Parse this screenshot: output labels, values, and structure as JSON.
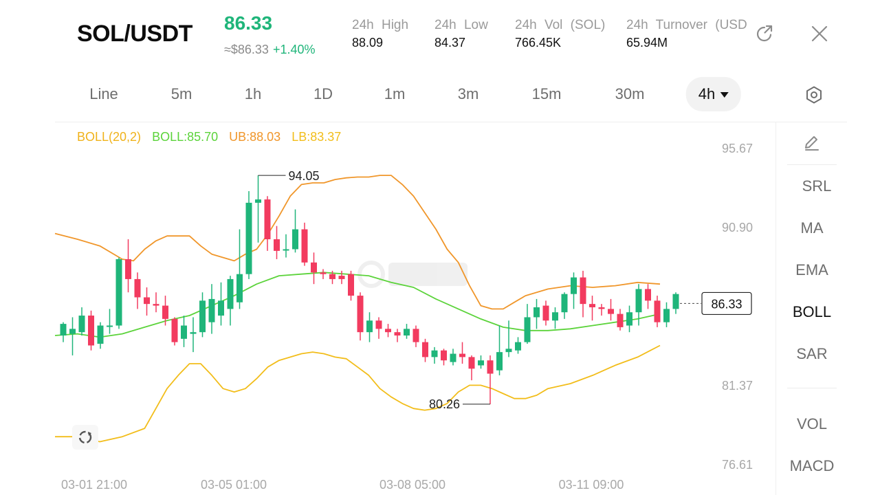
{
  "header": {
    "pair": "SOL/USDT",
    "price": "86.33",
    "price_fiat": "≈$86.33",
    "change": "+1.40%",
    "stats": [
      {
        "label": "24h High",
        "value": "88.09"
      },
      {
        "label": "24h Low",
        "value": "84.37"
      },
      {
        "label": "24h Vol (SOL)",
        "value": "766.45K"
      },
      {
        "label": "24h Turnover (USDT)",
        "value": "65.94M"
      }
    ],
    "share_icon": "share-icon",
    "close_icon": "close-icon"
  },
  "tabs": {
    "items": [
      "Line",
      "5m",
      "1h",
      "1D",
      "1m",
      "3m",
      "15m",
      "30m",
      "4h"
    ],
    "active": "4h",
    "settings_icon": "settings-icon"
  },
  "legend": {
    "boll_params": "BOLL(20,2)",
    "boll": "BOLL:85.70",
    "ub": "UB:88.03",
    "lb": "LB:83.37"
  },
  "colors": {
    "up": "#1fb57a",
    "down": "#f23b5f",
    "boll_mid": "#5bd33a",
    "boll_ub": "#f0962a",
    "boll_lb": "#f2bd1a",
    "params": "#f0b21a"
  },
  "side_panel": {
    "draw_icon": "pencil-icon",
    "items": [
      "SRL",
      "MA",
      "EMA",
      "BOLL",
      "SAR"
    ],
    "active": "BOLL",
    "sub_items": [
      "VOL",
      "MACD"
    ]
  },
  "chart_data": {
    "type": "candlestick",
    "y_ticks": [
      "95.67",
      "90.90",
      "81.37",
      "76.61"
    ],
    "ylim": [
      76.61,
      95.67
    ],
    "x_ticks": [
      "03-01 21:00",
      "03-05 01:00",
      "03-08 05:00",
      "03-11 09:00"
    ],
    "interval": "4h",
    "high_label": "94.05",
    "low_label": "80.26",
    "last_price": "86.33",
    "candles": [
      [
        84.4,
        85.1,
        84.0,
        85.2
      ],
      [
        84.5,
        84.8,
        83.2,
        85.5
      ],
      [
        84.6,
        85.6,
        84.4,
        86.1
      ],
      [
        85.6,
        83.8,
        83.5,
        85.9
      ],
      [
        83.9,
        85.0,
        83.6,
        85.2
      ],
      [
        85.0,
        85.0,
        84.5,
        86.0
      ],
      [
        85.0,
        89.0,
        84.8,
        89.1
      ],
      [
        89.0,
        87.8,
        87.0,
        90.2
      ],
      [
        87.8,
        86.7,
        86.0,
        88.2
      ],
      [
        86.7,
        86.3,
        85.6,
        87.3
      ],
      [
        86.3,
        86.2,
        85.8,
        87.0
      ],
      [
        86.2,
        85.4,
        85.0,
        86.8
      ],
      [
        85.4,
        84.0,
        83.8,
        85.5
      ],
      [
        84.2,
        85.0,
        83.7,
        85.6
      ],
      [
        84.5,
        84.6,
        83.4,
        85.5
      ],
      [
        84.6,
        86.5,
        84.3,
        87.0
      ],
      [
        85.2,
        86.6,
        84.5,
        87.5
      ],
      [
        85.6,
        86.5,
        85.0,
        87.6
      ],
      [
        86.0,
        87.8,
        85.0,
        88.0
      ],
      [
        86.4,
        88.1,
        86.0,
        90.8
      ],
      [
        88.1,
        92.4,
        87.8,
        93.1
      ],
      [
        92.4,
        92.6,
        90.0,
        94.05
      ],
      [
        92.6,
        90.2,
        89.5,
        92.8
      ],
      [
        90.2,
        89.5,
        89.0,
        91.0
      ],
      [
        89.6,
        89.6,
        89.1,
        90.5
      ],
      [
        89.6,
        90.8,
        89.4,
        92.0
      ],
      [
        90.8,
        88.8,
        88.6,
        91.2
      ],
      [
        88.8,
        88.2,
        87.5,
        89.4
      ],
      [
        88.2,
        88.1,
        87.8,
        88.4
      ],
      [
        88.1,
        87.8,
        87.5,
        88.3
      ],
      [
        88.0,
        87.8,
        87.5,
        88.3
      ],
      [
        88.1,
        86.8,
        86.5,
        88.3
      ],
      [
        86.8,
        84.6,
        84.1,
        87.0
      ],
      [
        84.6,
        85.3,
        84.0,
        85.8
      ],
      [
        85.3,
        84.8,
        84.2,
        85.5
      ],
      [
        84.8,
        84.6,
        84.3,
        85.1
      ],
      [
        84.6,
        84.4,
        84.0,
        84.8
      ],
      [
        84.4,
        84.8,
        84.2,
        85.1
      ],
      [
        84.8,
        84.0,
        83.7,
        85.0
      ],
      [
        84.0,
        83.1,
        82.8,
        84.2
      ],
      [
        83.1,
        83.5,
        82.7,
        83.7
      ],
      [
        83.5,
        82.9,
        82.6,
        83.6
      ],
      [
        82.8,
        83.3,
        82.6,
        83.6
      ],
      [
        83.3,
        83.1,
        82.7,
        84.0
      ],
      [
        83.1,
        82.4,
        81.7,
        83.2
      ],
      [
        82.6,
        82.9,
        82.4,
        83.2
      ],
      [
        82.9,
        82.1,
        80.26,
        83.2
      ],
      [
        82.3,
        83.4,
        82.0,
        85.0
      ],
      [
        83.4,
        83.6,
        83.1,
        85.3
      ],
      [
        83.5,
        84.0,
        83.3,
        84.3
      ],
      [
        84.0,
        85.5,
        83.9,
        86.3
      ],
      [
        85.5,
        86.1,
        84.8,
        86.6
      ],
      [
        86.2,
        85.3,
        85.0,
        86.5
      ],
      [
        85.3,
        85.8,
        84.8,
        86.1
      ],
      [
        85.8,
        86.9,
        85.4,
        87.0
      ],
      [
        86.9,
        87.9,
        86.0,
        88.2
      ],
      [
        87.9,
        86.3,
        85.5,
        88.3
      ],
      [
        86.3,
        86.1,
        85.3,
        86.8
      ],
      [
        86.1,
        86.0,
        85.6,
        86.3
      ],
      [
        86.0,
        85.7,
        85.3,
        86.6
      ],
      [
        85.7,
        84.9,
        84.7,
        86.0
      ],
      [
        85.0,
        85.8,
        84.6,
        86.2
      ],
      [
        85.8,
        87.2,
        85.0,
        87.5
      ],
      [
        87.2,
        86.5,
        86.0,
        87.5
      ],
      [
        86.5,
        85.2,
        84.9,
        86.8
      ],
      [
        85.2,
        86.0,
        84.9,
        86.4
      ],
      [
        86.0,
        86.9,
        85.7,
        87.0
      ]
    ],
    "boll_upper": [
      [
        0,
        90.55
      ],
      [
        20,
        90.2
      ],
      [
        40,
        89.8
      ],
      [
        60,
        89.0
      ],
      [
        70,
        88.9
      ],
      [
        80,
        89.6
      ],
      [
        90,
        90.1
      ],
      [
        100,
        90.4
      ],
      [
        120,
        90.4
      ],
      [
        130,
        89.8
      ],
      [
        140,
        89.3
      ],
      [
        160,
        88.9
      ],
      [
        170,
        89.3
      ],
      [
        180,
        89.6
      ],
      [
        190,
        90.5
      ],
      [
        200,
        91.6
      ],
      [
        210,
        92.8
      ],
      [
        220,
        93.5
      ],
      [
        230,
        93.6
      ],
      [
        240,
        93.6
      ],
      [
        250,
        93.8
      ],
      [
        260,
        93.9
      ],
      [
        270,
        93.95
      ],
      [
        280,
        93.95
      ],
      [
        290,
        94.05
      ],
      [
        300,
        94.05
      ],
      [
        310,
        93.5
      ],
      [
        320,
        92.8
      ],
      [
        330,
        91.8
      ],
      [
        340,
        90.8
      ],
      [
        350,
        89.6
      ],
      [
        360,
        88.8
      ],
      [
        370,
        87.4
      ],
      [
        380,
        86.2
      ],
      [
        390,
        86.0
      ],
      [
        400,
        86.0
      ],
      [
        410,
        86.4
      ],
      [
        420,
        86.8
      ],
      [
        440,
        87.2
      ],
      [
        460,
        87.4
      ],
      [
        480,
        87.3
      ],
      [
        500,
        87.4
      ],
      [
        520,
        87.6
      ],
      [
        540,
        87.5
      ]
    ],
    "boll_middle": [
      [
        0,
        84.4
      ],
      [
        20,
        84.5
      ],
      [
        40,
        84.3
      ],
      [
        60,
        84.5
      ],
      [
        80,
        84.9
      ],
      [
        100,
        85.3
      ],
      [
        120,
        85.6
      ],
      [
        140,
        86.2
      ],
      [
        160,
        86.8
      ],
      [
        180,
        87.5
      ],
      [
        200,
        88.0
      ],
      [
        220,
        88.1
      ],
      [
        240,
        88.2
      ],
      [
        260,
        88.1
      ],
      [
        280,
        88.0
      ],
      [
        300,
        87.6
      ],
      [
        320,
        87.3
      ],
      [
        340,
        86.6
      ],
      [
        360,
        86.0
      ],
      [
        380,
        85.4
      ],
      [
        400,
        84.9
      ],
      [
        420,
        84.7
      ],
      [
        440,
        84.7
      ],
      [
        460,
        84.8
      ],
      [
        480,
        85.0
      ],
      [
        500,
        85.2
      ],
      [
        520,
        85.4
      ],
      [
        540,
        85.7
      ]
    ],
    "boll_lower": [
      [
        0,
        78.3
      ],
      [
        20,
        78.3
      ],
      [
        40,
        78.0
      ],
      [
        60,
        78.3
      ],
      [
        80,
        78.8
      ],
      [
        90,
        80.0
      ],
      [
        100,
        81.2
      ],
      [
        110,
        82.0
      ],
      [
        120,
        82.7
      ],
      [
        130,
        82.7
      ],
      [
        140,
        82.0
      ],
      [
        150,
        81.2
      ],
      [
        160,
        81.0
      ],
      [
        170,
        81.2
      ],
      [
        180,
        81.8
      ],
      [
        190,
        82.5
      ],
      [
        200,
        82.9
      ],
      [
        210,
        83.1
      ],
      [
        220,
        83.3
      ],
      [
        230,
        83.4
      ],
      [
        240,
        83.3
      ],
      [
        250,
        83.1
      ],
      [
        260,
        83.0
      ],
      [
        270,
        82.5
      ],
      [
        280,
        82.0
      ],
      [
        290,
        81.2
      ],
      [
        300,
        80.7
      ],
      [
        310,
        80.3
      ],
      [
        320,
        80.0
      ],
      [
        330,
        79.9
      ],
      [
        340,
        80.0
      ],
      [
        350,
        80.3
      ],
      [
        360,
        81.0
      ],
      [
        370,
        81.4
      ],
      [
        380,
        81.4
      ],
      [
        390,
        81.2
      ],
      [
        400,
        80.9
      ],
      [
        410,
        80.6
      ],
      [
        420,
        80.6
      ],
      [
        430,
        80.8
      ],
      [
        440,
        81.2
      ],
      [
        460,
        81.5
      ],
      [
        480,
        82.0
      ],
      [
        500,
        82.6
      ],
      [
        520,
        83.1
      ],
      [
        540,
        83.8
      ]
    ]
  }
}
